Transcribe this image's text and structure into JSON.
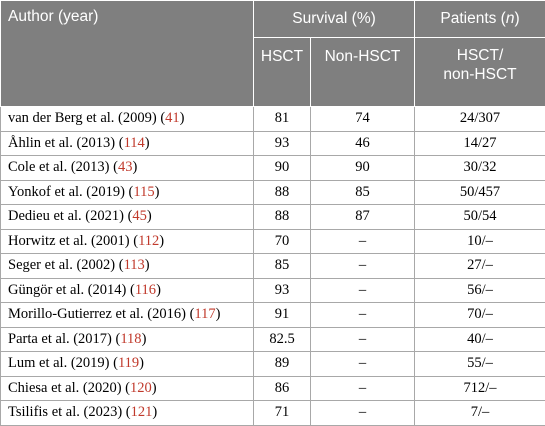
{
  "headers": {
    "author": "Author (year)",
    "survival": "Survival (%)",
    "patients_prefix": "Patients (",
    "patients_n": "n",
    "patients_suffix": ")",
    "hsct": "HSCT",
    "non_hsct": "Non-HSCT",
    "ratio_line1": "HSCT/",
    "ratio_line2": "non-HSCT"
  },
  "rows": [
    {
      "author": "van der Berg et al. (2009) (",
      "ref": "41",
      "close": ")",
      "hsct": "81",
      "non_hsct": "74",
      "patients": "24/307"
    },
    {
      "author": "Åhlin et al. (2013) (",
      "ref": "114",
      "close": ")",
      "hsct": "93",
      "non_hsct": "46",
      "patients": "14/27"
    },
    {
      "author": "Cole et al. (2013) (",
      "ref": "43",
      "close": ")",
      "hsct": "90",
      "non_hsct": "90",
      "patients": "30/32"
    },
    {
      "author": "Yonkof et al. (2019) (",
      "ref": "115",
      "close": ")",
      "hsct": "88",
      "non_hsct": "85",
      "patients": "50/457"
    },
    {
      "author": "Dedieu et al. (2021) (",
      "ref": "45",
      "close": ")",
      "hsct": "88",
      "non_hsct": "87",
      "patients": "50/54"
    },
    {
      "author": "Horwitz et al. (2001) (",
      "ref": "112",
      "close": ")",
      "hsct": "70",
      "non_hsct": "–",
      "patients": "10/–"
    },
    {
      "author": "Seger et al. (2002) (",
      "ref": "113",
      "close": ")",
      "hsct": "85",
      "non_hsct": "–",
      "patients": "27/–"
    },
    {
      "author": "Güngör et al. (2014) (",
      "ref": "116",
      "close": ")",
      "hsct": "93",
      "non_hsct": "–",
      "patients": "56/–"
    },
    {
      "author": "Morillo-Gutierrez et al. (2016) (",
      "ref": "117",
      "close": ")",
      "hsct": "91",
      "non_hsct": "–",
      "patients": "70/–"
    },
    {
      "author": "Parta et al. (2017) (",
      "ref": "118",
      "close": ")",
      "hsct": "82.5",
      "non_hsct": "–",
      "patients": "40/–"
    },
    {
      "author": "Lum et al. (2019) (",
      "ref": "119",
      "close": ")",
      "hsct": "89",
      "non_hsct": "–",
      "patients": "55/–"
    },
    {
      "author": "Chiesa et al. (2020) (",
      "ref": "120",
      "close": ")",
      "hsct": "86",
      "non_hsct": "–",
      "patients": "712/–"
    },
    {
      "author": "Tsilifis et al. (2023) (",
      "ref": "121",
      "close": ")",
      "hsct": "71",
      "non_hsct": "–",
      "patients": "7/–"
    }
  ]
}
